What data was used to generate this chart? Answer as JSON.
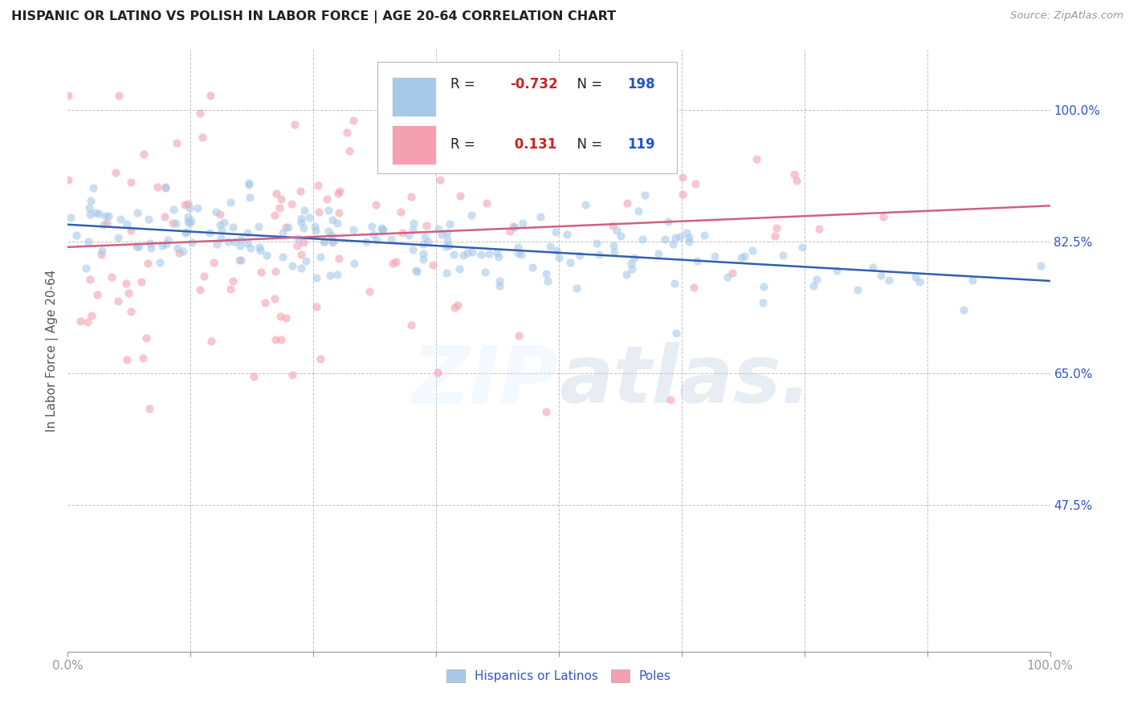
{
  "title": "HISPANIC OR LATINO VS POLISH IN LABOR FORCE | AGE 20-64 CORRELATION CHART",
  "source": "Source: ZipAtlas.com",
  "ylabel": "In Labor Force | Age 20-64",
  "y_ticks": [
    0.475,
    0.65,
    0.825,
    1.0
  ],
  "y_tick_labels": [
    "47.5%",
    "65.0%",
    "82.5%",
    "100.0%"
  ],
  "x_range": [
    0.0,
    1.0
  ],
  "y_range": [
    0.28,
    1.08
  ],
  "blue_R": -0.732,
  "blue_N": 198,
  "pink_R": 0.131,
  "pink_N": 119,
  "blue_color": "#a8c8e8",
  "pink_color": "#f4a0b0",
  "blue_line_color": "#3060b0",
  "pink_line_color": "#d06080",
  "blue_intercept": 0.848,
  "blue_slope": -0.075,
  "pink_intercept": 0.818,
  "pink_slope": 0.055,
  "legend_label_blue": "Hispanics or Latinos",
  "legend_label_pink": "Poles",
  "watermark": "ZIPAtlas.",
  "background_color": "#ffffff",
  "grid_color": "#bbbbbb",
  "title_color": "#222222",
  "tick_label_color": "#3355cc"
}
